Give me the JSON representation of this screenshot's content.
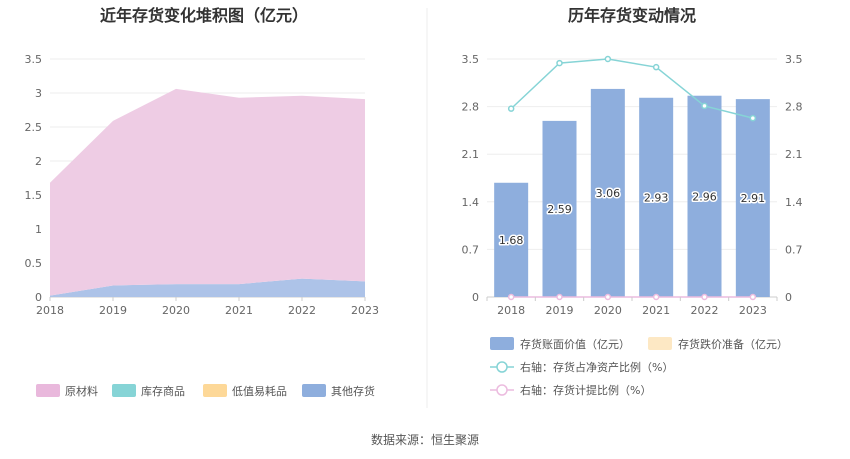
{
  "source_text": "数据来源：恒生聚源",
  "chart_data": [
    {
      "type": "area",
      "title": "近年存货变化堆积图（亿元）",
      "x": [
        "2018",
        "2019",
        "2020",
        "2021",
        "2022",
        "2023"
      ],
      "y_ticks": [
        "0",
        "0.5",
        "1",
        "1.5",
        "2",
        "2.5",
        "3",
        "3.5"
      ],
      "ylim": [
        0,
        3.5
      ],
      "stacked": true,
      "series": [
        {
          "name": "其他存货",
          "color": "#adc3e8",
          "values": [
            0.02,
            0.17,
            0.19,
            0.19,
            0.27,
            0.23
          ]
        },
        {
          "name": "低值易耗品",
          "color": "#fdd898",
          "values": [
            0,
            0,
            0,
            0,
            0,
            0
          ]
        },
        {
          "name": "库存商品",
          "color": "#86d4d6",
          "values": [
            0,
            0,
            0,
            0,
            0,
            0
          ]
        },
        {
          "name": "原材料",
          "color": "#eecce4",
          "values": [
            1.66,
            2.42,
            2.87,
            2.74,
            2.69,
            2.68
          ]
        }
      ],
      "legend": [
        {
          "name": "原材料",
          "color": "#e9b8dc"
        },
        {
          "name": "库存商品",
          "color": "#86d4d6"
        },
        {
          "name": "低值易耗品",
          "color": "#fdd898"
        },
        {
          "name": "其他存货",
          "color": "#8eaedd"
        }
      ],
      "legend_position": "bottom",
      "grid": true
    },
    {
      "type": "bar",
      "title": "历年存货变动情况",
      "categories": [
        "2018",
        "2019",
        "2020",
        "2021",
        "2022",
        "2023"
      ],
      "y_ticks": [
        "0",
        "0.7",
        "1.4",
        "2.1",
        "2.8",
        "3.5"
      ],
      "ylim": [
        0,
        3.5
      ],
      "right_y_ticks": [
        "0",
        "0.7",
        "1.4",
        "2.1",
        "2.8",
        "3.5"
      ],
      "right_ylim": [
        0,
        3.5
      ],
      "series": [
        {
          "name": "存货账面价值（亿元）",
          "type": "bar",
          "axis": "left",
          "color": "#8eaedd",
          "values": [
            1.68,
            2.59,
            3.06,
            2.93,
            2.96,
            2.91
          ],
          "labels": [
            "1.68",
            "2.59",
            "3.06",
            "2.93",
            "2.96",
            "2.91"
          ]
        },
        {
          "name": "存货跌价准备（亿元）",
          "type": "bar",
          "axis": "left",
          "color": "#fde8c4",
          "values": [
            0,
            0,
            0,
            0,
            0,
            0
          ]
        },
        {
          "name": "右轴：存货占净资产比例（%）",
          "type": "line",
          "axis": "right",
          "color": "#86d4d6",
          "values": [
            2.77,
            3.44,
            3.5,
            3.38,
            2.81,
            2.63
          ]
        },
        {
          "name": "右轴：存货计提比例（%）",
          "type": "line",
          "axis": "right",
          "color": "#ecbcdf",
          "values": [
            0,
            0,
            0,
            0,
            0,
            0
          ]
        }
      ],
      "legend_position": "bottom",
      "grid": true
    }
  ]
}
